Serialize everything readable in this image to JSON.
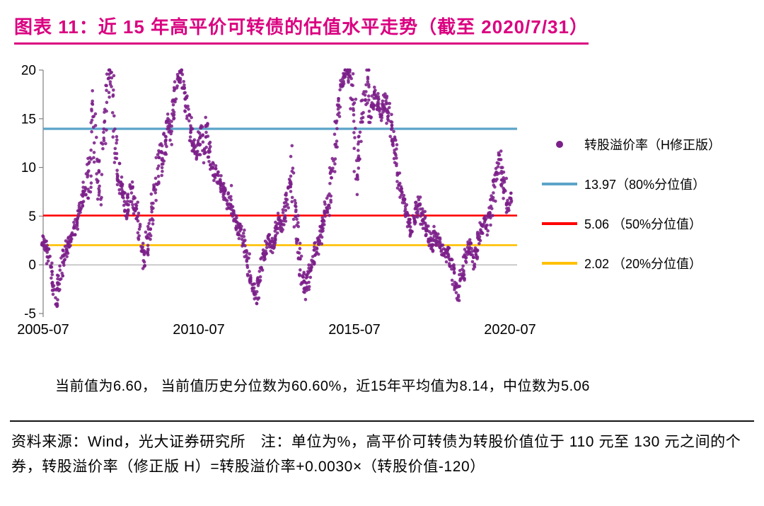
{
  "figure": {
    "title": "图表 11：近 15 年高平价可转债的估值水平走势（截至 2020/7/31）",
    "title_color": "#DA0080",
    "stats_line": "当前值为6.60，  当前值历史分位数为60.60%，近15年平均值为8.14，中位数为5.06",
    "source_note": "资料来源：Wind，光大证券研究所　注：单位为%，高平价可转债为转股价值位于 110 元至 130 元之间的个券，转股溢价率（修正版 H）=转股溢价率+0.0030×（转股价值-120）"
  },
  "legend": {
    "items": [
      {
        "label": "转股溢价率（H修正版）",
        "marker": "dot"
      },
      {
        "label": "13.97（80%分位值）",
        "marker": "line"
      },
      {
        "label": "5.06 （50%分位值）",
        "marker": "line"
      },
      {
        "label": "2.02 （20%分位值）",
        "marker": "line"
      }
    ]
  },
  "chart_data": {
    "type": "scatter",
    "title": "近15年高平价可转债的估值水平走势（截至2020/7/31）",
    "series_name": "转股溢价率（H修正版）",
    "unit": "%",
    "x_range": [
      "2005-07",
      "2020-07"
    ],
    "x_ticks": [
      "2005-07",
      "2010-07",
      "2015-07",
      "2020-07"
    ],
    "y_ticks": [
      -5,
      0,
      5,
      10,
      15,
      20
    ],
    "ylim": [
      -5,
      20
    ],
    "point_color": "#7C1F8A",
    "hlines": [
      {
        "value": 13.97,
        "percentile": "80%分位值",
        "color": "#5BA4C9"
      },
      {
        "value": 5.06,
        "percentile": "50%分位值",
        "color": "#FF0000"
      },
      {
        "value": 2.02,
        "percentile": "20%分位值",
        "color": "#FFC000"
      }
    ],
    "stats": {
      "current": 6.6,
      "current_percentile": "60.60%",
      "mean_15y": 8.14,
      "median": 5.06
    },
    "sampling": "monthly_mean_approximation_of_daily_scatter",
    "monthly_means_from_2005_07": [
      2.5,
      1.8,
      0.8,
      -0.5,
      -2.5,
      -3.8,
      -2.0,
      -0.5,
      0.8,
      1.5,
      2.2,
      2.8,
      3.5,
      4.5,
      5.5,
      6.5,
      7.5,
      8.5,
      11.0,
      16.0,
      13.0,
      9.0,
      8.0,
      10.5,
      15.0,
      19.5,
      19.0,
      16.5,
      12.0,
      9.0,
      8.0,
      7.0,
      5.5,
      6.5,
      7.5,
      6.0,
      5.0,
      3.5,
      1.5,
      0.5,
      2.0,
      3.5,
      5.5,
      7.5,
      9.5,
      11.5,
      10.5,
      12.5,
      14.5,
      13.5,
      15.5,
      17.5,
      19.0,
      19.8,
      18.5,
      17.0,
      15.5,
      14.0,
      12.5,
      11.5,
      12.5,
      14.0,
      12.0,
      13.5,
      11.5,
      10.0,
      9.5,
      9.0,
      8.5,
      8.0,
      7.5,
      6.5,
      7.0,
      5.5,
      4.5,
      3.5,
      4.0,
      3.0,
      1.5,
      0.0,
      -1.5,
      -2.5,
      -3.2,
      -2.0,
      -0.5,
      1.0,
      2.0,
      2.5,
      1.8,
      2.5,
      3.5,
      4.5,
      4.0,
      5.0,
      6.5,
      8.0,
      9.0,
      6.0,
      3.0,
      0.5,
      -1.5,
      -2.5,
      -1.5,
      -0.5,
      0.5,
      1.5,
      2.0,
      3.0,
      4.5,
      5.5,
      6.5,
      8.0,
      10.5,
      13.5,
      16.5,
      18.5,
      19.5,
      20.0,
      19.5,
      18.0,
      14.0,
      9.5,
      12.5,
      15.0,
      17.0,
      18.5,
      15.5,
      16.5,
      17.5,
      16.5,
      15.5,
      16.5,
      17.0,
      15.5,
      14.0,
      12.5,
      11.0,
      9.0,
      7.5,
      6.5,
      5.5,
      4.5,
      3.5,
      4.5,
      5.5,
      6.0,
      5.0,
      4.5,
      3.5,
      2.5,
      2.0,
      3.0,
      2.5,
      2.0,
      1.5,
      1.0,
      1.5,
      0.5,
      -0.5,
      -2.0,
      -2.8,
      -1.5,
      -0.5,
      1.0,
      2.0,
      1.5,
      0.5,
      1.5,
      2.5,
      3.5,
      4.5,
      4.0,
      5.0,
      6.0,
      7.5,
      9.5,
      10.5,
      9.0,
      7.5,
      6.0,
      6.6
    ]
  }
}
